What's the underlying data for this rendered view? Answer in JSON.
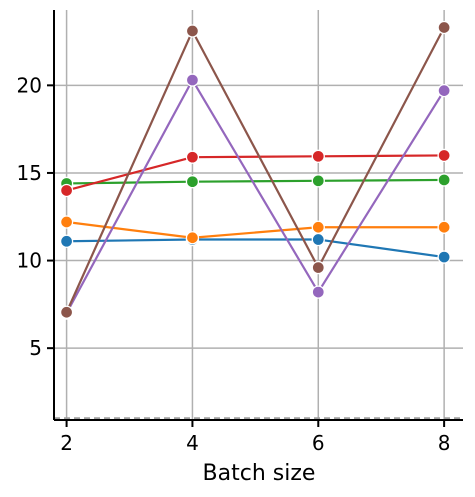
{
  "chart_data": {
    "type": "line",
    "xlabel": "Batch size",
    "ylabel": "",
    "x": [
      2,
      4,
      6,
      8
    ],
    "xlim": [
      1.8,
      8.3
    ],
    "ylim": [
      0.9,
      24.3
    ],
    "xticks": [
      2,
      4,
      6,
      8
    ],
    "yticks": [
      5,
      10,
      15,
      20
    ],
    "grid": true,
    "reference_line": {
      "y": 1,
      "style": "dashed",
      "color": "#9e9e9e"
    },
    "series": [
      {
        "color": "#1f77b4",
        "values": [
          11.1,
          11.2,
          11.2,
          10.2
        ]
      },
      {
        "color": "#ff7f0e",
        "values": [
          12.2,
          11.3,
          11.9,
          11.9
        ]
      },
      {
        "color": "#2ca02c",
        "values": [
          14.4,
          14.5,
          14.55,
          14.6
        ]
      },
      {
        "color": "#d62728",
        "values": [
          14.0,
          15.9,
          15.95,
          16.0
        ]
      },
      {
        "color": "#9467bd",
        "values": [
          7.0,
          20.3,
          8.2,
          19.7
        ]
      },
      {
        "color": "#8c564b",
        "values": [
          7.05,
          23.1,
          9.6,
          23.3
        ]
      }
    ]
  }
}
